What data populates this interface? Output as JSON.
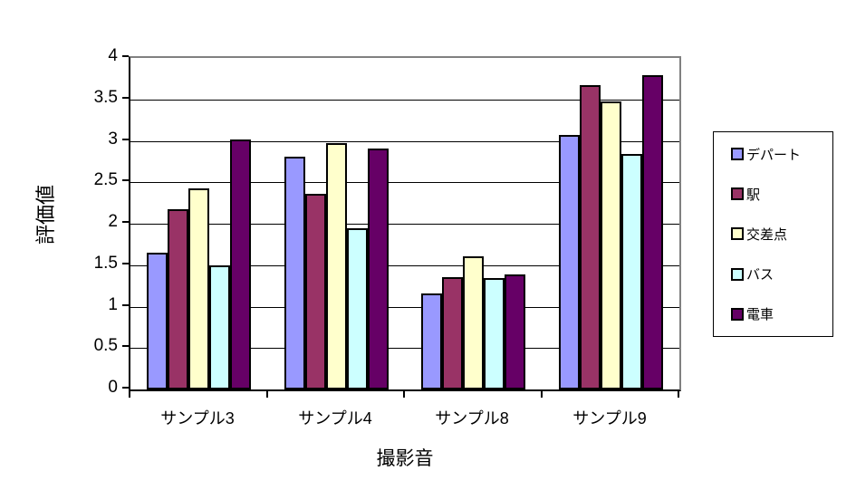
{
  "chart_data": {
    "type": "bar",
    "title": "",
    "xlabel": "撮影音",
    "ylabel": "評価値",
    "categories": [
      "サンプル3",
      "サンプル4",
      "サンプル8",
      "サンプル9"
    ],
    "series": [
      {
        "name": "デパート",
        "color": "#9999FF",
        "values": [
          1.65,
          2.81,
          1.16,
          3.07
        ]
      },
      {
        "name": "駅",
        "color": "#993366",
        "values": [
          2.18,
          2.36,
          1.35,
          3.67
        ]
      },
      {
        "name": "交差点",
        "color": "#FFFFCC",
        "values": [
          2.43,
          2.97,
          1.61,
          3.48
        ]
      },
      {
        "name": "バス",
        "color": "#CCFFFF",
        "values": [
          1.5,
          1.95,
          1.34,
          2.84
        ]
      },
      {
        "name": "電車",
        "color": "#660066",
        "values": [
          3.02,
          2.91,
          1.39,
          3.79
        ]
      }
    ],
    "ylim": [
      0,
      4
    ],
    "ytick_step": 0.5,
    "yticks": [
      "4",
      "3.5",
      "3",
      "2.5",
      "2",
      "1.5",
      "1",
      "0.5",
      "0"
    ],
    "grid": true,
    "gridline_color": "#000000",
    "plot_border_color": "#808080",
    "legend_position": "right"
  }
}
